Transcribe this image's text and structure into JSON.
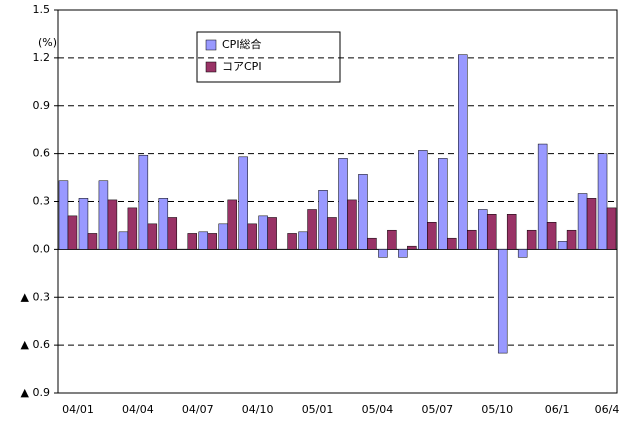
{
  "chart_data": {
    "type": "bar",
    "annotations": [
      "(%)"
    ],
    "categories": [
      "04/01",
      null,
      null,
      "04/04",
      null,
      null,
      "04/07",
      null,
      null,
      "04/10",
      null,
      null,
      "05/01",
      null,
      null,
      "05/04",
      null,
      null,
      "05/07",
      null,
      null,
      "05/10",
      null,
      null,
      "06/1",
      null,
      null,
      "06/4"
    ],
    "series": [
      {
        "name": "CPI総合",
        "color": "#9999ff",
        "values": [
          0.43,
          0.32,
          0.43,
          0.11,
          0.59,
          0.32,
          0,
          0.11,
          0.16,
          0.58,
          0.21,
          0,
          0.11,
          0.37,
          0.57,
          0.47,
          -0.05,
          -0.05,
          0.62,
          0.57,
          1.22,
          0.25,
          -0.65,
          -0.05,
          0.66,
          0.05,
          0.35,
          0.6
        ]
      },
      {
        "name": "コアCPI",
        "color": "#993366",
        "values": [
          0.21,
          0.1,
          0.31,
          0.26,
          0.16,
          0.2,
          0.1,
          0.1,
          0.31,
          0.16,
          0.2,
          0.1,
          0.25,
          0.2,
          0.31,
          0.07,
          0.12,
          0.02,
          0.17,
          0.07,
          0.12,
          0.22,
          0.22,
          0.12,
          0.17,
          0.12,
          0.32,
          0.26
        ]
      }
    ],
    "ylim": [
      -0.9,
      1.5
    ],
    "yticks": [
      {
        "value": -0.9,
        "label": "▲ 0.9"
      },
      {
        "value": -0.6,
        "label": "▲ 0.6"
      },
      {
        "value": -0.3,
        "label": "▲ 0.3"
      },
      {
        "value": 0,
        "label": "0.0"
      },
      0.3,
      0.6,
      0.9,
      1.2,
      1.5
    ],
    "grid": true,
    "legend": "top-left"
  }
}
